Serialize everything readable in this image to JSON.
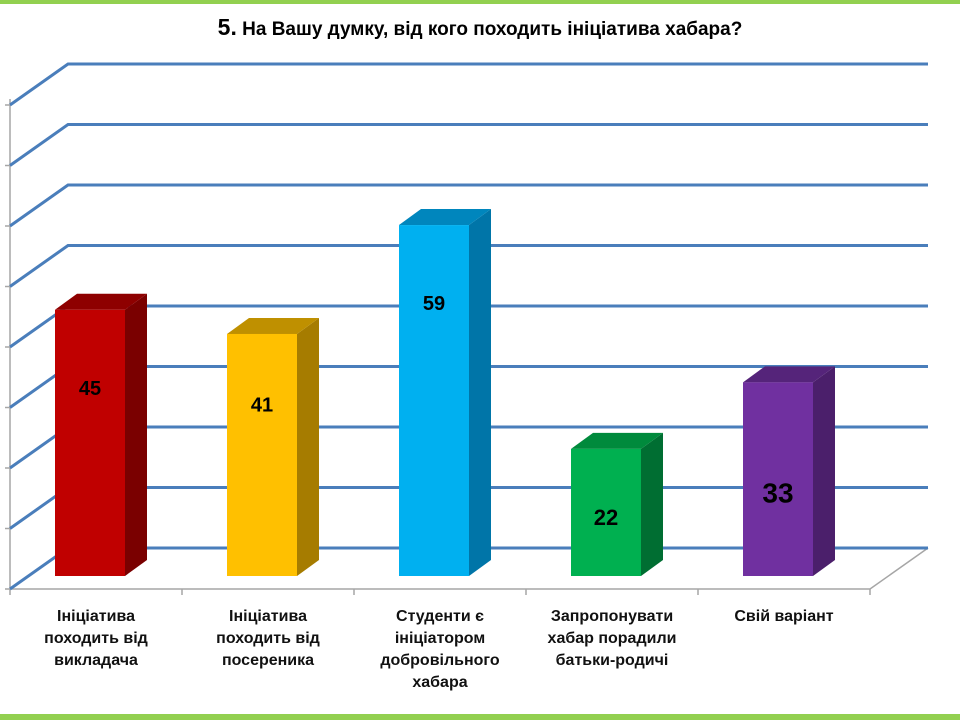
{
  "title": {
    "number": "5.",
    "text": "На Вашу думку, від кого походить  ініціатива хабара?"
  },
  "colors": {
    "band": "#92d050",
    "grid": "#4a7ebb",
    "bars": [
      {
        "front": "#c00000",
        "side": "#7a0000",
        "top": "#8e0000"
      },
      {
        "front": "#ffc000",
        "side": "#a67c00",
        "top": "#bf9000"
      },
      {
        "front": "#00b0f0",
        "side": "#0075a8",
        "top": "#0086bd"
      },
      {
        "front": "#00b050",
        "side": "#006e32",
        "top": "#008a3c"
      },
      {
        "front": "#7030a0",
        "side": "#4b1f6b",
        "top": "#55247a"
      }
    ]
  },
  "chart_data": {
    "type": "bar",
    "categories": [
      [
        "Ініціатива",
        "походить від",
        "викладача"
      ],
      [
        "Ініціатива",
        "походить від",
        "посереника"
      ],
      [
        "Студенти є",
        "ініціатором",
        "добровільного",
        "хабара"
      ],
      [
        "Запропонувати",
        "хабар порадили",
        "батьки-родичі"
      ],
      [
        "Свій варіант"
      ]
    ],
    "values": [
      45,
      41,
      59,
      22,
      33
    ],
    "labels": [
      "45",
      "41",
      "59",
      "22",
      "33"
    ],
    "ylim": [
      0,
      80
    ],
    "grid": true,
    "ticks_labeled": false
  }
}
